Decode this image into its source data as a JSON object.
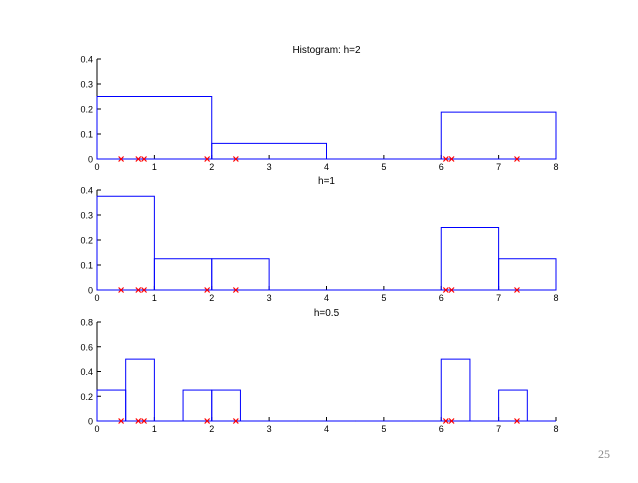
{
  "slide": {
    "page_number": "25"
  },
  "colors": {
    "histogram": "#0000ff",
    "samples": "#ff0000",
    "axis": "#000000"
  },
  "chart_data": [
    {
      "type": "histogram",
      "title": "Histogram: h=2",
      "xlim": [
        0,
        8
      ],
      "ylim": [
        0,
        0.4
      ],
      "xticks": [
        0,
        1,
        2,
        3,
        4,
        5,
        6,
        7,
        8
      ],
      "yticks": [
        0,
        0.1,
        0.2,
        0.3,
        0.4
      ],
      "ytick_labels": [
        "0",
        "0.1",
        "0.2",
        "0.3",
        "0.4"
      ],
      "bin_width": 2,
      "bins": [
        {
          "x0": 0,
          "x1": 2,
          "density": 0.25
        },
        {
          "x0": 2,
          "x1": 4,
          "density": 0.0625
        },
        {
          "x0": 4,
          "x1": 6,
          "density": 0
        },
        {
          "x0": 6,
          "x1": 8,
          "density": 0.1875
        }
      ],
      "samples": [
        0.42,
        0.72,
        0.82,
        1.92,
        2.42,
        6.08,
        6.18,
        7.32
      ]
    },
    {
      "type": "histogram",
      "title": "h=1",
      "xlim": [
        0,
        8
      ],
      "ylim": [
        0,
        0.4
      ],
      "xticks": [
        0,
        1,
        2,
        3,
        4,
        5,
        6,
        7,
        8
      ],
      "yticks": [
        0,
        0.1,
        0.2,
        0.3,
        0.4
      ],
      "ytick_labels": [
        "0",
        "0.1",
        "0.2",
        "0.3",
        "0.4"
      ],
      "bin_width": 1,
      "bins": [
        {
          "x0": 0,
          "x1": 1,
          "density": 0.375
        },
        {
          "x0": 1,
          "x1": 2,
          "density": 0.125
        },
        {
          "x0": 2,
          "x1": 3,
          "density": 0.125
        },
        {
          "x0": 3,
          "x1": 4,
          "density": 0
        },
        {
          "x0": 4,
          "x1": 5,
          "density": 0
        },
        {
          "x0": 5,
          "x1": 6,
          "density": 0
        },
        {
          "x0": 6,
          "x1": 7,
          "density": 0.25
        },
        {
          "x0": 7,
          "x1": 8,
          "density": 0.125
        }
      ],
      "samples": [
        0.42,
        0.72,
        0.82,
        1.92,
        2.42,
        6.08,
        6.18,
        7.32
      ]
    },
    {
      "type": "histogram",
      "title": "h=0.5",
      "xlim": [
        0,
        8
      ],
      "ylim": [
        0,
        0.8
      ],
      "xticks": [
        0,
        1,
        2,
        3,
        4,
        5,
        6,
        7,
        8
      ],
      "yticks": [
        0,
        0.2,
        0.4,
        0.6,
        0.8
      ],
      "ytick_labels": [
        "0",
        "0.2",
        "0.4",
        "0.6",
        "0.8"
      ],
      "bin_width": 0.5,
      "bins": [
        {
          "x0": 0,
          "x1": 0.5,
          "density": 0.25
        },
        {
          "x0": 0.5,
          "x1": 1,
          "density": 0.5
        },
        {
          "x0": 1,
          "x1": 1.5,
          "density": 0
        },
        {
          "x0": 1.5,
          "x1": 2,
          "density": 0.25
        },
        {
          "x0": 2,
          "x1": 2.5,
          "density": 0.25
        },
        {
          "x0": 2.5,
          "x1": 3,
          "density": 0
        },
        {
          "x0": 3,
          "x1": 3.5,
          "density": 0
        },
        {
          "x0": 3.5,
          "x1": 4,
          "density": 0
        },
        {
          "x0": 4,
          "x1": 4.5,
          "density": 0
        },
        {
          "x0": 4.5,
          "x1": 5,
          "density": 0
        },
        {
          "x0": 5,
          "x1": 5.5,
          "density": 0
        },
        {
          "x0": 5.5,
          "x1": 6,
          "density": 0
        },
        {
          "x0": 6,
          "x1": 6.5,
          "density": 0.5
        },
        {
          "x0": 6.5,
          "x1": 7,
          "density": 0
        },
        {
          "x0": 7,
          "x1": 7.5,
          "density": 0.25
        },
        {
          "x0": 7.5,
          "x1": 8,
          "density": 0
        }
      ],
      "samples": [
        0.42,
        0.72,
        0.82,
        1.92,
        2.42,
        6.08,
        6.18,
        7.32
      ]
    }
  ]
}
